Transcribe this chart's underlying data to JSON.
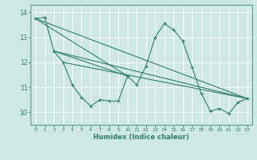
{
  "xlabel": "Humidex (Indice chaleur)",
  "bg_color": "#cfe8e5",
  "grid_color": "#ffffff",
  "line_color": "#2e7d6e",
  "xlim": [
    -0.5,
    23.5
  ],
  "ylim": [
    9.5,
    14.3
  ],
  "yticks": [
    10,
    11,
    12,
    13,
    14
  ],
  "xticks": [
    0,
    1,
    2,
    3,
    4,
    5,
    6,
    7,
    8,
    9,
    10,
    11,
    12,
    13,
    14,
    15,
    16,
    17,
    18,
    19,
    20,
    21,
    22,
    23
  ],
  "series": [
    [
      0,
      13.75
    ],
    [
      1,
      13.8
    ],
    [
      2,
      12.45
    ],
    [
      3,
      12.0
    ],
    [
      4,
      11.1
    ],
    [
      5,
      10.6
    ],
    [
      6,
      10.25
    ],
    [
      7,
      10.5
    ],
    [
      8,
      10.45
    ],
    [
      9,
      10.45
    ],
    [
      10,
      11.45
    ],
    [
      11,
      11.1
    ],
    [
      12,
      11.85
    ],
    [
      13,
      13.0
    ],
    [
      14,
      13.55
    ],
    [
      15,
      13.3
    ],
    [
      16,
      12.85
    ],
    [
      17,
      11.8
    ],
    [
      18,
      10.75
    ],
    [
      19,
      10.05
    ],
    [
      20,
      10.15
    ],
    [
      21,
      9.95
    ],
    [
      22,
      10.4
    ],
    [
      23,
      10.55
    ]
  ],
  "straight_lines": [
    [
      [
        0,
        13.75
      ],
      [
        23,
        10.55
      ]
    ],
    [
      [
        2,
        12.45
      ],
      [
        23,
        10.55
      ]
    ],
    [
      [
        3,
        12.0
      ],
      [
        23,
        10.55
      ]
    ],
    [
      [
        0,
        13.75
      ],
      [
        10,
        11.45
      ]
    ],
    [
      [
        2,
        12.45
      ],
      [
        10,
        11.45
      ]
    ]
  ]
}
